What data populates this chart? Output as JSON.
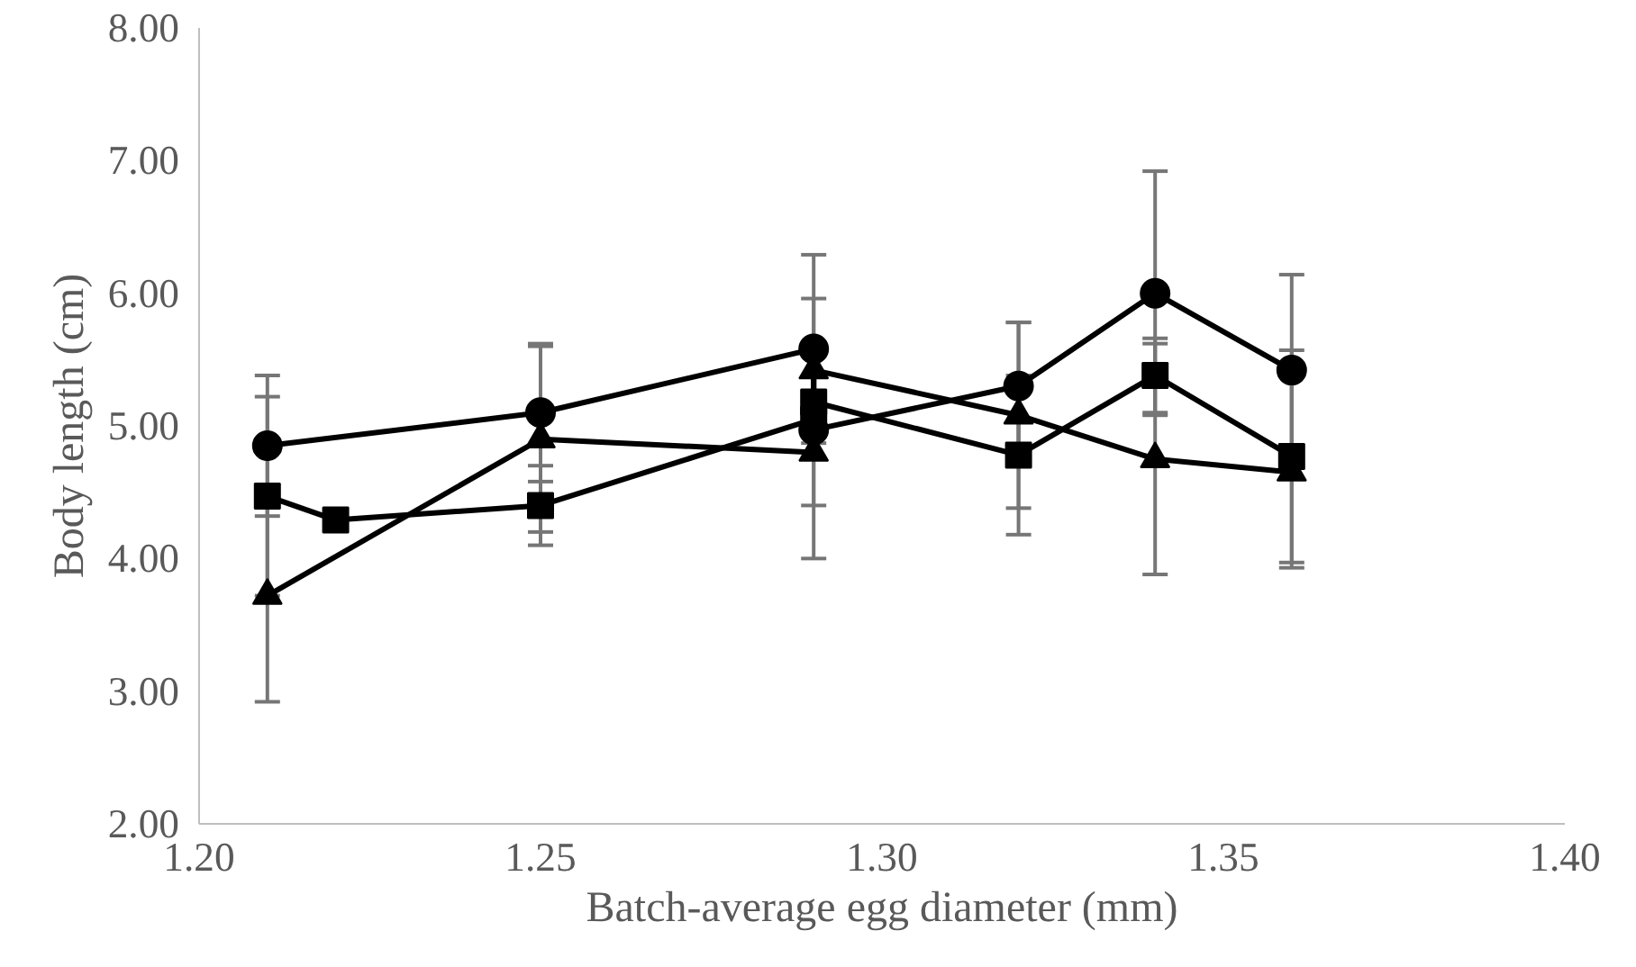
{
  "chart_data": {
    "type": "line",
    "xlabel": "Batch-average egg diameter (mm)",
    "ylabel": "Body length (cm)",
    "xlim": [
      1.2,
      1.4
    ],
    "xticks": [
      {
        "value": 1.2,
        "label": "1.20"
      },
      {
        "value": 1.25,
        "label": "1.25"
      },
      {
        "value": 1.3,
        "label": "1.30"
      },
      {
        "value": 1.35,
        "label": "1.35"
      },
      {
        "value": 1.4,
        "label": "1.40"
      }
    ],
    "ylim": [
      2,
      8
    ],
    "yticks": [
      {
        "value": 2,
        "label": "2.00"
      },
      {
        "value": 3,
        "label": "3.00"
      },
      {
        "value": 4,
        "label": "4.00"
      },
      {
        "value": 5,
        "label": "5.00"
      },
      {
        "value": 6,
        "label": "6.00"
      },
      {
        "value": 7,
        "label": "7.00"
      },
      {
        "value": 8,
        "label": "8.00"
      }
    ],
    "grid": false,
    "line_style": "solid",
    "series": [
      {
        "color": "#000000",
        "marker": "circle",
        "x": [
          1.21,
          1.25,
          1.29,
          1.29,
          1.32,
          1.34,
          1.36
        ],
        "values": [
          4.85,
          5.1,
          5.58,
          4.97,
          5.3,
          6.0,
          5.42
        ],
        "errors": [
          0.53,
          0.52,
          0.71,
          null,
          0.48,
          0.92,
          0.72
        ]
      },
      {
        "color": "#000000",
        "marker": "square",
        "x": [
          1.21,
          1.22,
          1.25,
          1.29,
          1.29,
          1.32,
          1.34,
          1.36
        ],
        "values": [
          4.47,
          4.29,
          4.4,
          5.05,
          5.18,
          4.78,
          5.38,
          4.77
        ],
        "errors": [
          0.75,
          null,
          0.3,
          null,
          0.78,
          0.6,
          0.28,
          0.8
        ]
      },
      {
        "color": "#000000",
        "marker": "triangle",
        "x": [
          1.21,
          1.25,
          1.29,
          1.29,
          1.32,
          1.34,
          1.36
        ],
        "values": [
          3.72,
          4.9,
          4.8,
          5.42,
          5.08,
          4.75,
          4.65
        ],
        "errors": [
          0.8,
          0.7,
          0.8,
          null,
          0.7,
          0.87,
          0.72
        ]
      }
    ]
  }
}
